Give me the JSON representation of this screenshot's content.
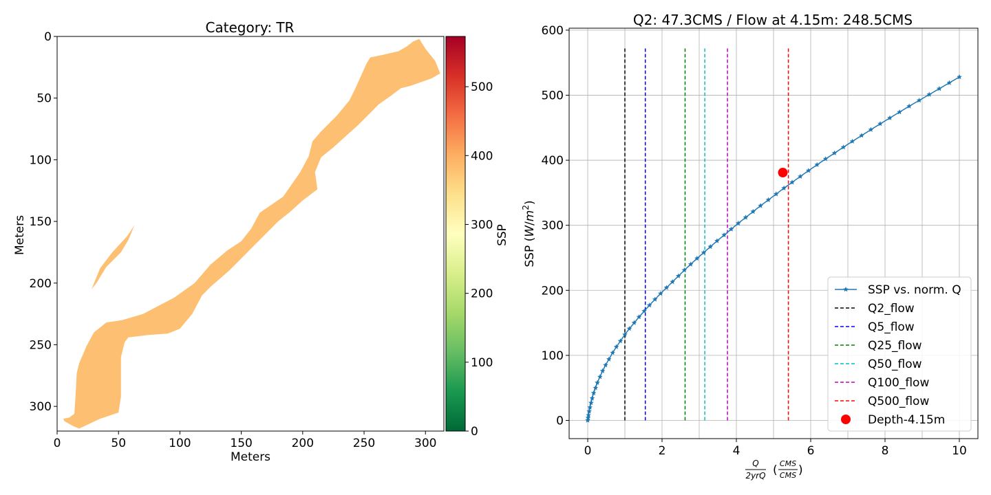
{
  "chart_data": [
    {
      "type": "heatmap",
      "title": "Category: TR",
      "xlabel": "Meters",
      "ylabel": "Meters",
      "xlim": [
        0,
        315
      ],
      "ylim": [
        320,
        0
      ],
      "x_ticks": [
        0,
        50,
        100,
        150,
        200,
        250,
        300
      ],
      "y_ticks": [
        0,
        50,
        100,
        150,
        200,
        250,
        300
      ],
      "cell_value": 380,
      "cell_color": "#fdbf71",
      "colorbar": {
        "label": "SSP",
        "min": 0,
        "max": 573,
        "ticks": [
          0,
          100,
          200,
          300,
          400,
          500
        ],
        "colormap": [
          "#006837",
          "#1a9850",
          "#66bd63",
          "#a6d96a",
          "#d9ef8b",
          "#ffffbf",
          "#fee08b",
          "#fdae61",
          "#f46d43",
          "#d73027",
          "#a50026"
        ]
      },
      "region": [
        [
          5,
          310
        ],
        [
          10,
          309
        ],
        [
          14,
          306
        ],
        [
          15,
          291
        ],
        [
          16,
          273
        ],
        [
          18,
          265
        ],
        [
          24,
          251
        ],
        [
          30,
          240
        ],
        [
          40,
          232
        ],
        [
          53,
          230
        ],
        [
          70,
          225
        ],
        [
          95,
          212
        ],
        [
          112,
          200
        ],
        [
          125,
          185
        ],
        [
          138,
          174
        ],
        [
          150,
          166
        ],
        [
          158,
          156
        ],
        [
          165,
          143
        ],
        [
          184,
          130
        ],
        [
          198,
          110
        ],
        [
          205,
          97
        ],
        [
          208,
          85
        ],
        [
          215,
          77
        ],
        [
          228,
          64
        ],
        [
          238,
          52
        ],
        [
          243,
          42
        ],
        [
          252,
          22
        ],
        [
          255,
          17
        ],
        [
          265,
          15
        ],
        [
          278,
          12
        ],
        [
          285,
          8
        ],
        [
          290,
          4
        ],
        [
          295,
          2
        ],
        [
          300,
          10
        ],
        [
          308,
          20
        ],
        [
          312,
          30
        ],
        [
          305,
          34
        ],
        [
          288,
          40
        ],
        [
          280,
          42
        ],
        [
          272,
          48
        ],
        [
          262,
          55
        ],
        [
          255,
          62
        ],
        [
          245,
          72
        ],
        [
          236,
          80
        ],
        [
          225,
          90
        ],
        [
          215,
          98
        ],
        [
          210,
          110
        ],
        [
          212,
          124
        ],
        [
          200,
          133
        ],
        [
          190,
          142
        ],
        [
          180,
          150
        ],
        [
          170,
          160
        ],
        [
          160,
          170
        ],
        [
          147,
          183
        ],
        [
          140,
          190
        ],
        [
          125,
          203
        ],
        [
          118,
          210
        ],
        [
          110,
          225
        ],
        [
          100,
          237
        ],
        [
          90,
          241
        ],
        [
          75,
          242
        ],
        [
          58,
          244
        ],
        [
          55,
          248
        ],
        [
          52,
          260
        ],
        [
          52,
          275
        ],
        [
          52,
          292
        ],
        [
          50,
          305
        ],
        [
          35,
          310
        ],
        [
          18,
          318
        ],
        [
          13,
          316
        ],
        [
          6,
          312
        ]
      ],
      "sliver": [
        [
          28,
          205
        ],
        [
          35,
          188
        ],
        [
          45,
          175
        ],
        [
          57,
          162
        ],
        [
          63,
          153
        ],
        [
          58,
          165
        ],
        [
          52,
          175
        ],
        [
          40,
          187
        ],
        [
          32,
          200
        ]
      ]
    },
    {
      "type": "line",
      "title": "Q2: 47.3CMS / Flow at 4.15m: 248.5CMS",
      "xlabel": "Q/(2yrQ) (CMS/CMS)",
      "ylabel": "SSP (W/m²)",
      "xlim": [
        -0.5,
        10.5
      ],
      "ylim": [
        -28,
        603
      ],
      "x_ticks": [
        0,
        2,
        4,
        6,
        8,
        10
      ],
      "y_ticks": [
        0,
        100,
        200,
        300,
        400,
        500,
        600
      ],
      "grid": true,
      "legend_position": "bottom-right",
      "series": [
        {
          "name": "SSP vs. norm. Q",
          "color": "#1f77b4",
          "marker": "star",
          "x": [
            0,
            0.01,
            0.02,
            0.04,
            0.06,
            0.09,
            0.12,
            0.16,
            0.21,
            0.26,
            0.33,
            0.4,
            0.48,
            0.57,
            0.67,
            0.77,
            0.88,
            1.0,
            1.12,
            1.25,
            1.38,
            1.52,
            1.66,
            1.81,
            1.96,
            2.12,
            2.28,
            2.44,
            2.6,
            2.77,
            2.94,
            3.12,
            3.3,
            3.48,
            3.67,
            3.86,
            4.05,
            4.25,
            4.45,
            4.65,
            4.86,
            5.07,
            5.28,
            5.5,
            5.72,
            5.94,
            6.17,
            6.4,
            6.64,
            6.88,
            7.12,
            7.37,
            7.62,
            7.87,
            8.13,
            8.39,
            8.65,
            8.92,
            9.19,
            9.46,
            9.73,
            10.0
          ],
          "y": [
            0,
            4,
            8,
            14,
            20,
            27,
            34,
            42,
            50,
            58,
            67,
            76,
            85,
            94,
            104,
            113,
            122,
            132,
            141,
            150,
            159,
            168,
            177,
            186,
            195,
            204,
            213,
            222,
            231,
            240,
            249,
            258,
            267,
            276,
            285,
            294,
            303,
            312,
            321,
            330,
            339,
            348,
            357,
            366,
            375,
            384,
            393,
            402,
            411,
            420,
            429,
            438,
            447,
            456,
            465,
            474,
            483,
            492,
            501,
            510,
            519,
            528
          ]
        },
        {
          "name": "Q2_flow",
          "color": "#000000",
          "style": "dashed",
          "x": 1.0,
          "y_range": [
            0,
            573
          ]
        },
        {
          "name": "Q5_flow",
          "color": "#0000ff",
          "style": "dashed",
          "x": 1.55,
          "y_range": [
            0,
            573
          ]
        },
        {
          "name": "Q25_flow",
          "color": "#008000",
          "style": "dashed",
          "x": 2.62,
          "y_range": [
            0,
            573
          ]
        },
        {
          "name": "Q50_flow",
          "color": "#00bfbf",
          "style": "dashed",
          "x": 3.15,
          "y_range": [
            0,
            573
          ]
        },
        {
          "name": "Q100_flow",
          "color": "#bf00bf",
          "style": "dashed",
          "x": 3.76,
          "y_range": [
            0,
            573
          ]
        },
        {
          "name": "Q500_flow",
          "color": "#ff0000",
          "style": "dashed",
          "x": 5.4,
          "y_range": [
            0,
            573
          ]
        },
        {
          "name": "Depth-4.15m",
          "color": "#ff0000",
          "marker": "circle",
          "x": 5.25,
          "y": 381
        }
      ]
    }
  ]
}
